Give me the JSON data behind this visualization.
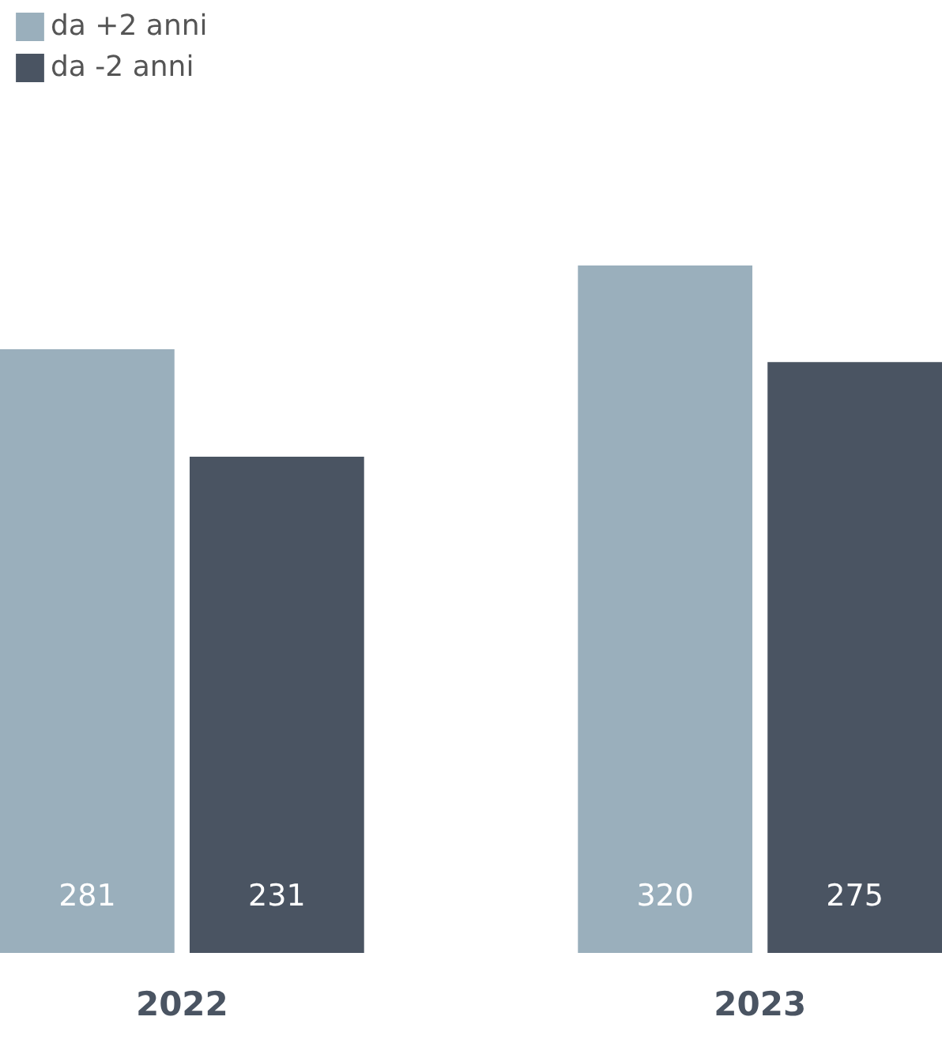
{
  "chart_data": {
    "type": "bar",
    "categories": [
      "2022",
      "2023"
    ],
    "series": [
      {
        "name": "da +2 anni",
        "color": "#9aafbc",
        "values": [
          281,
          320
        ]
      },
      {
        "name": "da -2 anni",
        "color": "#4a5462",
        "values": [
          231,
          275
        ]
      }
    ],
    "data_labels": true,
    "legend": "top left"
  }
}
